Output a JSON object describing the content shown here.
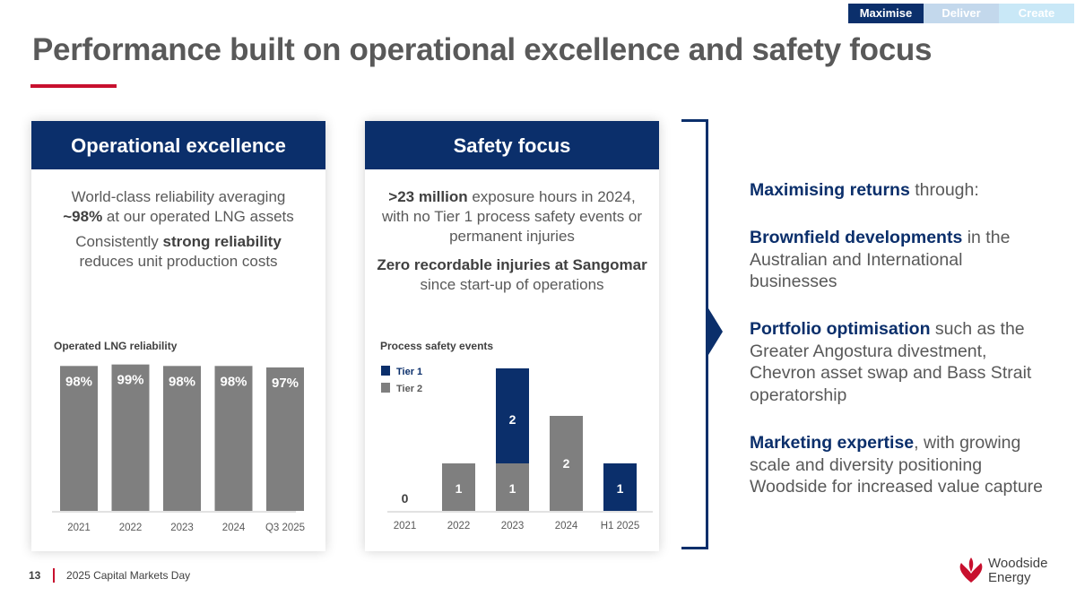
{
  "tabs": [
    {
      "label": "Maximise",
      "bg": "#0b2f6b",
      "color": "#ffffff"
    },
    {
      "label": "Deliver",
      "bg": "#c3d8ec",
      "color": "#ffffff"
    },
    {
      "label": "Create",
      "bg": "#c9e8f7",
      "color": "#ffffff"
    }
  ],
  "title": "Performance built on operational excellence and safety focus",
  "ops": {
    "header": "Operational excellence",
    "p1_a": "World-class reliability averaging",
    "p1_b": "~98%",
    "p1_c": " at our operated LNG assets",
    "p2_a": "Consistently ",
    "p2_b": "strong reliability",
    "p2_c": "reduces unit production costs"
  },
  "safety": {
    "header": "Safety focus",
    "p1_b": ">23 million",
    "p1_c": " exposure hours in 2024,",
    "p1_d": "with no Tier 1 process safety events or",
    "p1_e": "permanent injuries",
    "p2_b": "Zero recordable injuries at Sangomar",
    "p2_c": "since start-up of operations"
  },
  "chart_data": [
    {
      "type": "bar",
      "title": "Operated LNG reliability",
      "categories": [
        "2021",
        "2022",
        "2023",
        "2024",
        "Q3 2025"
      ],
      "values": [
        98,
        99,
        98,
        98,
        97
      ],
      "labels": [
        "98%",
        "99%",
        "98%",
        "98%",
        "97%"
      ],
      "ylim": [
        0,
        100
      ],
      "color": "#7f7f7f"
    },
    {
      "type": "bar",
      "stacked": true,
      "title": "Process safety events",
      "categories": [
        "2021",
        "2022",
        "2023",
        "2024",
        "H1 2025"
      ],
      "series": [
        {
          "name": "Tier 2",
          "values": [
            0,
            1,
            1,
            2,
            0
          ],
          "color": "#7f7f7f"
        },
        {
          "name": "Tier 1",
          "values": [
            0,
            0,
            2,
            0,
            1
          ],
          "color": "#0b2f6b"
        }
      ],
      "zero_label": "0",
      "ylim": [
        0,
        3
      ]
    }
  ],
  "right": {
    "r1_b": "Maximising returns",
    "r1_c": " through:",
    "r2_b": "Brownfield developments",
    "r2_c": " in the Australian and International businesses",
    "r3_b": "Portfolio optimisation",
    "r3_c": " such as the Greater Angostura divestment, Chevron asset swap and Bass Strait operatorship",
    "r4_b": "Marketing expertise",
    "r4_c": ", with growing scale and diversity positioning Woodside for increased value capture"
  },
  "footer": {
    "page": "13",
    "event": "2025 Capital Markets Day"
  },
  "logo": {
    "line1": "Woodside",
    "line2": "Energy"
  }
}
